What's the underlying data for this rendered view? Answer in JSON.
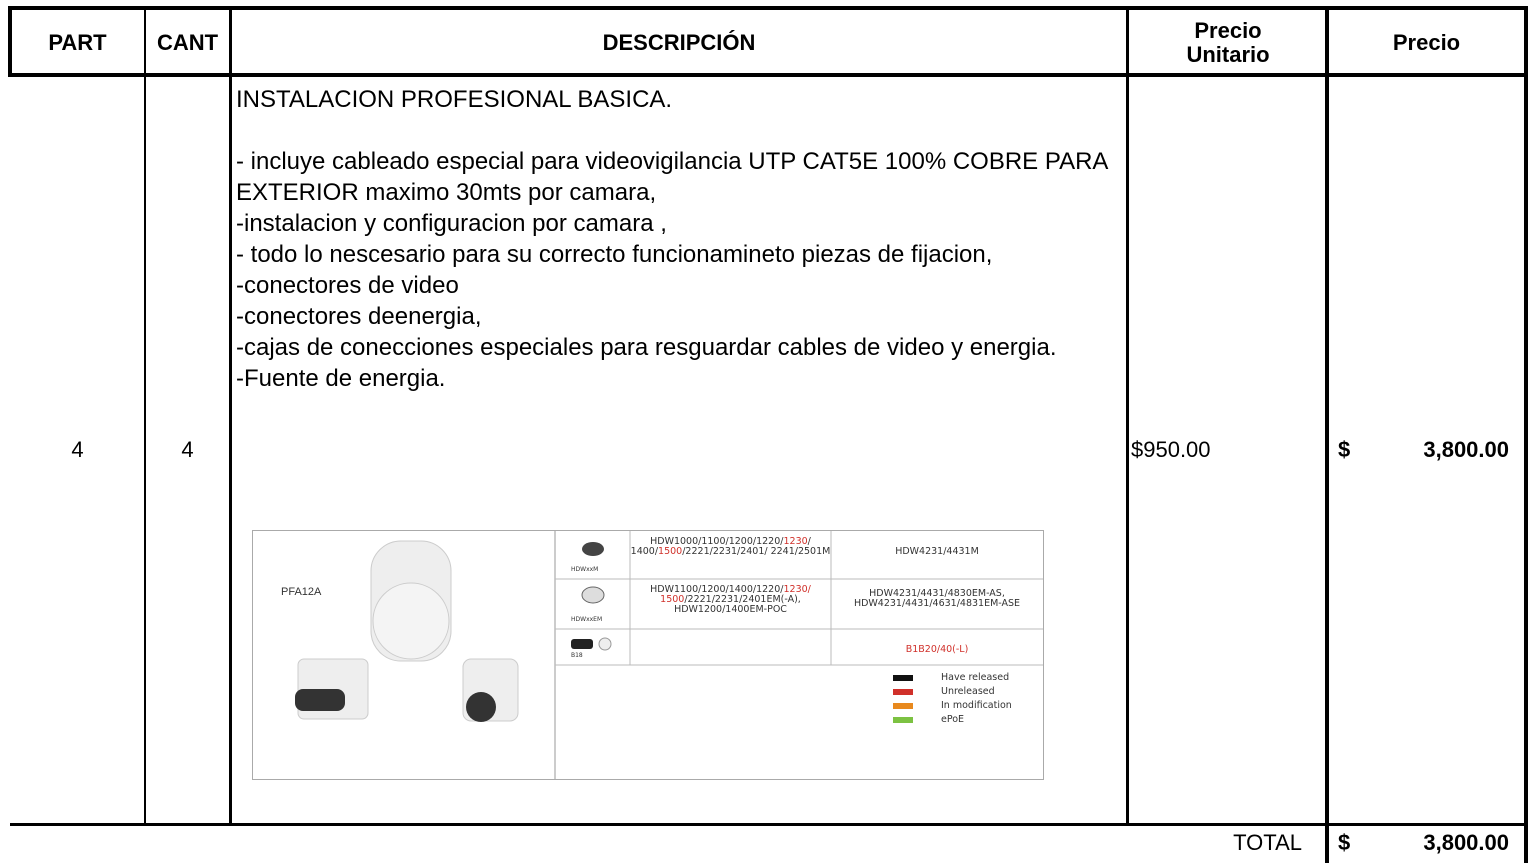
{
  "table": {
    "headers": [
      "PART",
      "CANT",
      "DESCRIPCIÓN",
      "Precio Unitario",
      "Precio"
    ],
    "row": {
      "part": "4",
      "cant": "4",
      "description": [
        "INSTALACION PROFESIONAL BASICA.",
        "- incluye cableado especial para videovigilancia UTP CAT5E 100% COBRE PARA EXTERIOR maximo 30mts por camara,",
        "-instalacion y configuracion por camara ,",
        "- todo lo nescesario para su correcto funcionamineto piezas de fijacion,",
        "-conectores de video",
        "-conectores deenergia,",
        "-cajas de conecciones especiales para resguardar cables de video y energia.",
        "-Fuente de energia."
      ],
      "unit_price": "$950.00",
      "price_symbol": "$",
      "price": "3,800.00"
    },
    "total": {
      "label": "TOTAL",
      "symbol": "$",
      "amount": "3,800.00"
    }
  },
  "image": {
    "product": "PFA12A",
    "rows": [
      {
        "icon_label": "HDWxxM",
        "models": [
          {
            "text": "HDW1000/1100/1200/1220/",
            "color": "#333333"
          },
          {
            "text": "1230",
            "color": "#d0302a"
          },
          {
            "text": "/ 1400/",
            "color": "#333333"
          },
          {
            "text": "1500",
            "color": "#d0302a"
          },
          {
            "text": "/2221/2231/2401/ 2241/2501M",
            "color": "#333333"
          }
        ],
        "compatible": [
          {
            "text": "HDW4231/4431M",
            "color": "#333333"
          }
        ]
      },
      {
        "icon_label": "HDWxxEM",
        "models": [
          {
            "text": "HDW1100/1200/1400/1220/",
            "color": "#333333"
          },
          {
            "text": "1230/ 1500",
            "color": "#d0302a"
          },
          {
            "text": "/2221/2231/2401EM(-A), HDW1200/1400EM-POC",
            "color": "#333333"
          }
        ],
        "compatible": [
          {
            "text": "HDW4231/4431/4830EM-AS, HDW4231/4431/4631/4831EM-ASE",
            "color": "#333333"
          }
        ]
      },
      {
        "icon_label": "B18",
        "models": [],
        "compatible": [
          {
            "text": "B1B20/40(-L)",
            "color": "#d0302a"
          }
        ]
      }
    ],
    "legend": [
      {
        "label": "Have released",
        "color": "#111111"
      },
      {
        "label": "Unreleased",
        "color": "#d0302a"
      },
      {
        "label": "In modification",
        "color": "#e8891e"
      },
      {
        "label": "ePoE",
        "color": "#7cc242"
      }
    ]
  }
}
